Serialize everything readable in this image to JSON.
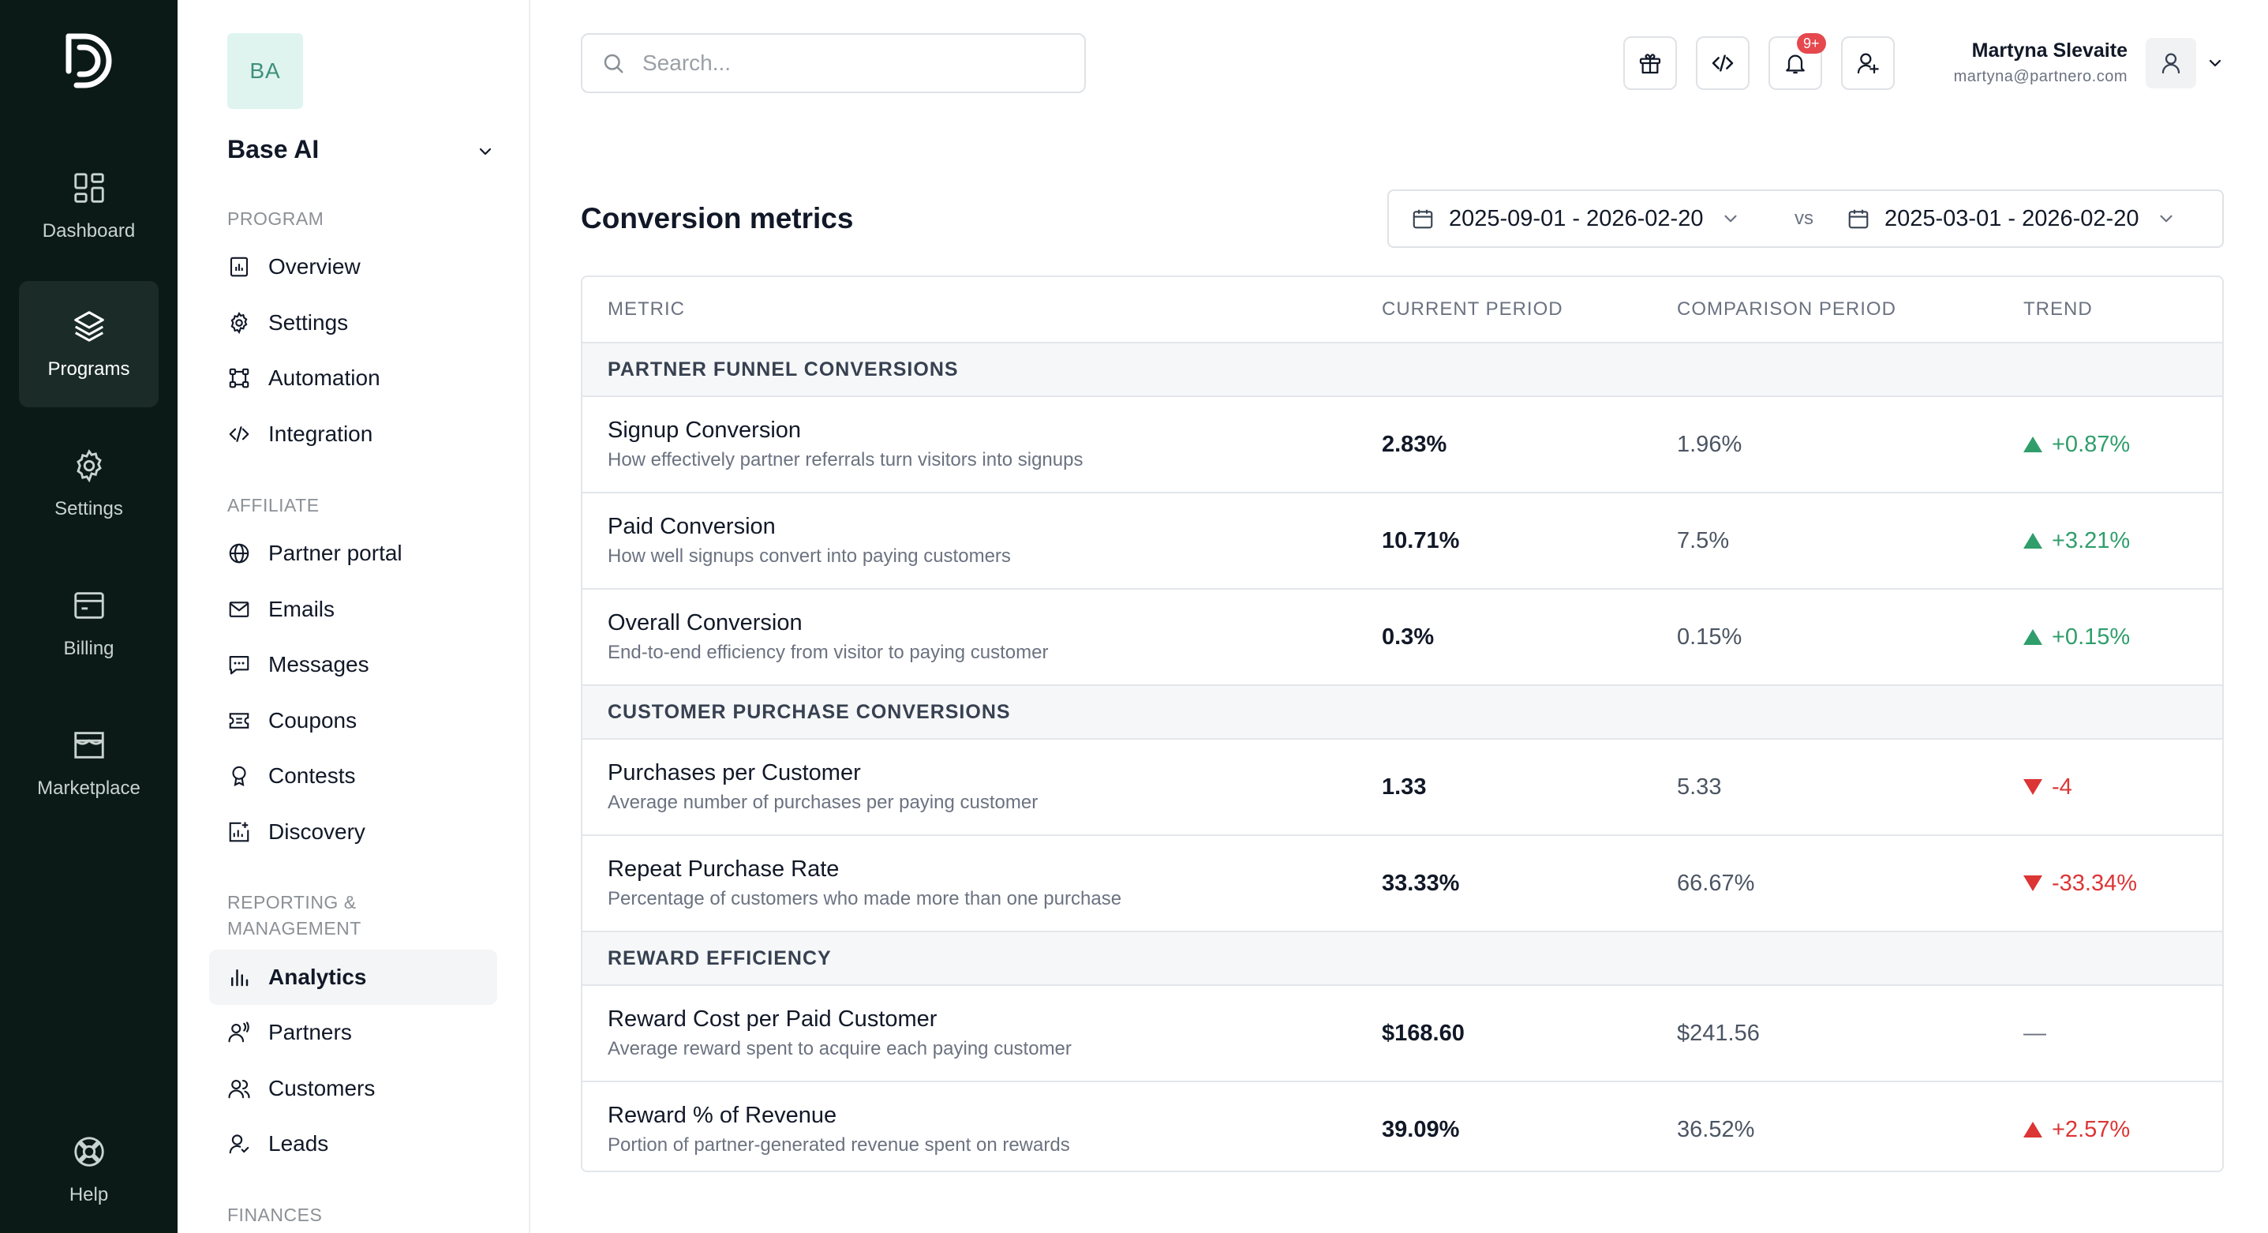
{
  "rail": {
    "items": [
      {
        "label": "Dashboard",
        "icon": "dashboard-icon"
      },
      {
        "label": "Programs",
        "icon": "layers-icon",
        "active": true
      },
      {
        "label": "Settings",
        "icon": "gear-icon"
      },
      {
        "label": "Billing",
        "icon": "billing-icon"
      },
      {
        "label": "Marketplace",
        "icon": "store-icon"
      }
    ],
    "help_label": "Help"
  },
  "sidebar": {
    "org_initials": "BA",
    "org_name": "Base AI",
    "sections": {
      "program": "PROGRAM",
      "affiliate": "AFFILIATE",
      "reporting_line1": "REPORTING &",
      "reporting_line2": "MANAGEMENT",
      "finances": "FINANCES"
    },
    "program_items": [
      "Overview",
      "Settings",
      "Automation",
      "Integration"
    ],
    "affiliate_items": [
      "Partner portal",
      "Emails",
      "Messages",
      "Coupons",
      "Contests",
      "Discovery"
    ],
    "reporting_items": [
      "Analytics",
      "Partners",
      "Customers",
      "Leads"
    ]
  },
  "topbar": {
    "search_placeholder": "Search...",
    "notification_badge": "9+",
    "user_name": "Martyna Slevaite",
    "user_email": "martyna@partnero.com"
  },
  "main": {
    "title": "Conversion metrics",
    "current_range": "2025-09-01 - 2026-02-20",
    "vs_label": "vs",
    "comparison_range": "2025-03-01 - 2026-02-20"
  },
  "table": {
    "headers": {
      "metric": "METRIC",
      "current": "CURRENT PERIOD",
      "comparison": "COMPARISON PERIOD",
      "trend": "TREND"
    },
    "groups": [
      {
        "title": "PARTNER FUNNEL CONVERSIONS",
        "rows": [
          {
            "name": "Signup Conversion",
            "desc": "How effectively partner referrals turn visitors into signups",
            "current": "2.83%",
            "comparison": "1.96%",
            "trend": "+0.87%",
            "direction": "up",
            "color": "#2f9e6b"
          },
          {
            "name": "Paid Conversion",
            "desc": "How well signups convert into paying customers",
            "current": "10.71%",
            "comparison": "7.5%",
            "trend": "+3.21%",
            "direction": "up",
            "color": "#2f9e6b"
          },
          {
            "name": "Overall Conversion",
            "desc": "End-to-end efficiency from visitor to paying customer",
            "current": "0.3%",
            "comparison": "0.15%",
            "trend": "+0.15%",
            "direction": "up",
            "color": "#2f9e6b"
          }
        ]
      },
      {
        "title": "CUSTOMER PURCHASE CONVERSIONS",
        "rows": [
          {
            "name": "Purchases per Customer",
            "desc": "Average number of purchases per paying customer",
            "current": "1.33",
            "comparison": "5.33",
            "trend": "-4",
            "direction": "down",
            "color": "#dc3535"
          },
          {
            "name": "Repeat Purchase Rate",
            "desc": "Percentage of customers who made more than one purchase",
            "current": "33.33%",
            "comparison": "66.67%",
            "trend": "-33.34%",
            "direction": "down",
            "color": "#dc3535"
          }
        ]
      },
      {
        "title": "REWARD EFFICIENCY",
        "rows": [
          {
            "name": "Reward Cost per Paid Customer",
            "desc": "Average reward spent to acquire each paying customer",
            "current": "$168.60",
            "comparison": "$241.56",
            "trend": "—",
            "direction": "neutral",
            "color": "#6b7280"
          },
          {
            "name": "Reward % of Revenue",
            "desc": "Portion of partner-generated revenue spent on rewards",
            "current": "39.09%",
            "comparison": "36.52%",
            "trend": "+2.57%",
            "direction": "up",
            "color": "#dc3535"
          }
        ]
      }
    ]
  }
}
